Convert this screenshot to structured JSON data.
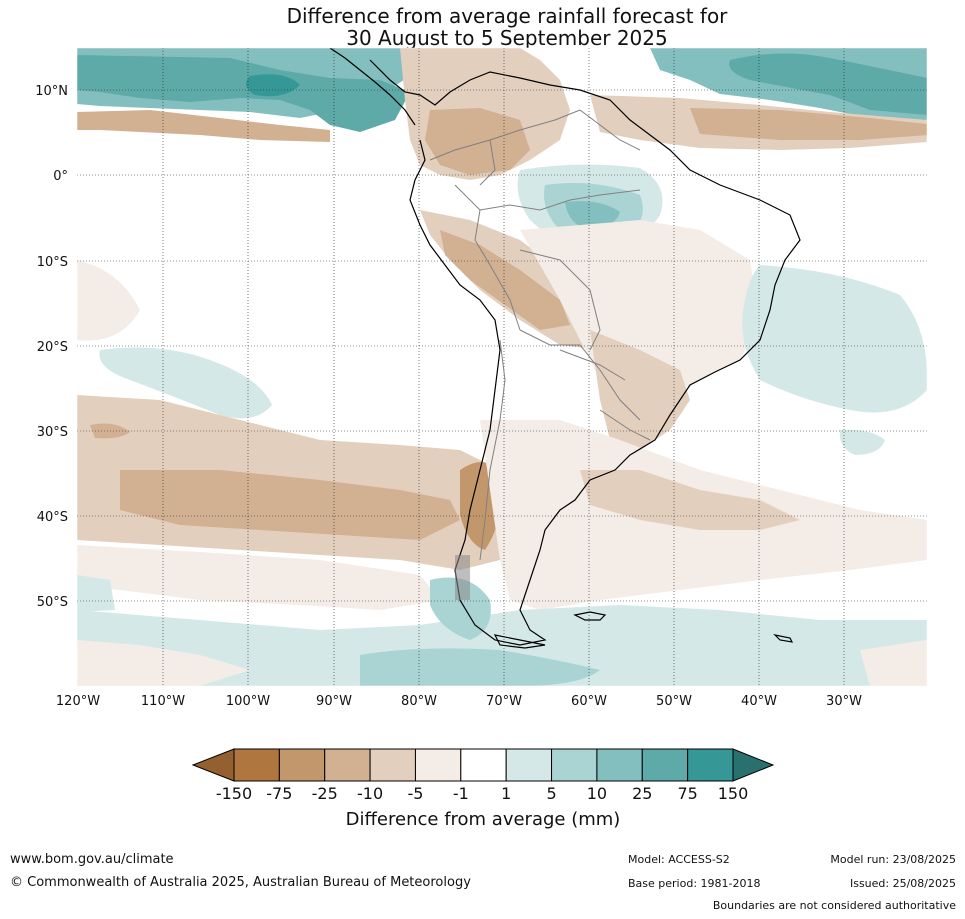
{
  "title": {
    "line1": "Difference from average rainfall forecast for",
    "line2": "30 August to 5 September 2025"
  },
  "map": {
    "region": "South America",
    "lon_labels": [
      "120°W",
      "110°W",
      "100°W",
      "90°W",
      "80°W",
      "70°W",
      "60°W",
      "50°W",
      "40°W",
      "30°W"
    ],
    "lat_labels": [
      "10°N",
      "0°",
      "10°S",
      "20°S",
      "30°S",
      "40°S",
      "50°S"
    ],
    "gridlines": "dotted",
    "land_outline_color": "#000000",
    "border_color": "#808080"
  },
  "colorbar": {
    "title": "Difference from average (mm)",
    "labels": [
      "-150",
      "-75",
      "-25",
      "-10",
      "-5",
      "-1",
      "1",
      "5",
      "10",
      "25",
      "75",
      "150"
    ],
    "colors": [
      "#95602f",
      "#af763f",
      "#c3976c",
      "#d2b092",
      "#e3cfbe",
      "#f4ece7",
      "#ffffff",
      "#d4e9e7",
      "#a9d4d3",
      "#83bfbe",
      "#5daaa9",
      "#359896",
      "#2a706e"
    ],
    "extend": "both"
  },
  "footer": {
    "url": "www.bom.gov.au/climate",
    "copyright": "© Commonwealth of Australia 2025, Australian Bureau of Meteorology",
    "model": "Model: ACCESS-S2",
    "base_period": "Base period: 1981-2018",
    "model_run": "Model run: 23/08/2025",
    "issued": "Issued: 25/08/2025",
    "boundaries": "Boundaries are not considered authoritative"
  }
}
